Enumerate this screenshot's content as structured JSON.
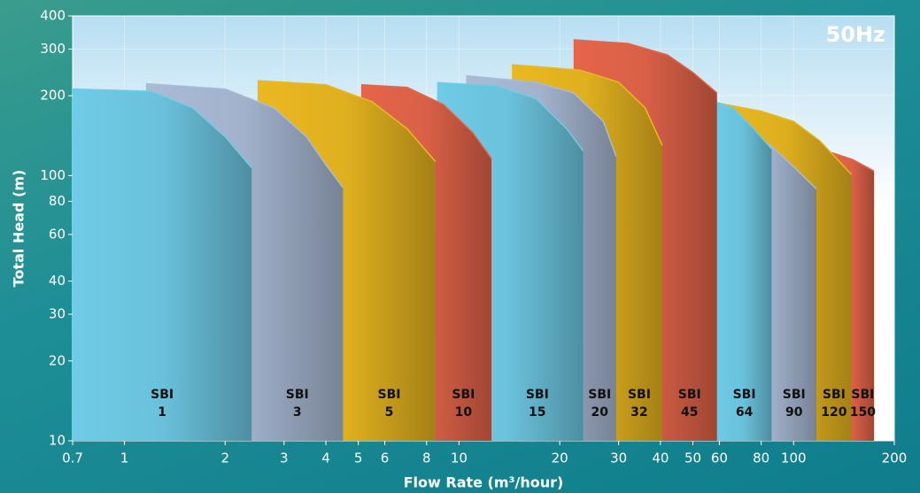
{
  "chart_data": {
    "type": "area-range",
    "annotation": "50Hz",
    "x_label": "Flow Rate (m³/hour)",
    "y_label": "Total Head (m)",
    "xscale": "log",
    "yscale": "log",
    "grid": true,
    "xlim": [
      0.7,
      200
    ],
    "ylim": [
      10,
      400
    ],
    "xticks": [
      0.7,
      1,
      2,
      3,
      4,
      5,
      6,
      8,
      10,
      20,
      30,
      40,
      50,
      60,
      80,
      100,
      200
    ],
    "yticks": [
      10,
      20,
      30,
      40,
      60,
      80,
      100,
      200,
      300,
      400
    ],
    "series": [
      {
        "name": "SBI 1",
        "color": "#6fcbe6",
        "x": [
          0.7,
          1.2,
          1.6,
          2.0,
          2.4
        ],
        "values": [
          212,
          208,
          180,
          140,
          107
        ]
      },
      {
        "name": "SBI 3",
        "color": "#aabbd6",
        "x": [
          1.16,
          2,
          2.8,
          3.5,
          4.0,
          4.5
        ],
        "values": [
          222,
          212,
          180,
          140,
          110,
          90
        ]
      },
      {
        "name": "SBI 5",
        "color": "#eab820",
        "x": [
          2.5,
          4,
          5.5,
          7,
          8.5
        ],
        "values": [
          228,
          220,
          190,
          150,
          113
        ]
      },
      {
        "name": "SBI 10",
        "color": "#e4654a",
        "x": [
          5.1,
          7,
          9,
          11,
          12.5
        ],
        "values": [
          220,
          215,
          185,
          145,
          116
        ]
      },
      {
        "name": "SBI 15",
        "color": "#6fcbe6",
        "x": [
          8.6,
          13,
          17,
          21,
          23.5
        ],
        "values": [
          224,
          218,
          195,
          150,
          124
        ]
      },
      {
        "name": "SBI 20",
        "color": "#aabbd6",
        "x": [
          10.5,
          17,
          22,
          27,
          29.5
        ],
        "values": [
          238,
          225,
          205,
          160,
          118
        ]
      },
      {
        "name": "SBI 32",
        "color": "#eab820",
        "x": [
          14.4,
          23,
          30,
          36,
          40.5
        ],
        "values": [
          262,
          250,
          225,
          180,
          130
        ]
      },
      {
        "name": "SBI 45",
        "color": "#e4654a",
        "x": [
          22,
          32,
          42,
          50,
          59
        ],
        "values": [
          325,
          315,
          285,
          245,
          205
        ]
      },
      {
        "name": "SBI 64",
        "color": "#6fcbe6",
        "x": [
          58,
          66,
          76,
          86
        ],
        "values": [
          190,
          180,
          150,
          126
        ]
      },
      {
        "name": "SBI 90",
        "color": "#aabbd6",
        "x": [
          62,
          86,
          100,
          117
        ],
        "values": [
          170,
          129,
          108,
          89
        ]
      },
      {
        "name": "SBI 120",
        "color": "#eab820",
        "x": [
          59,
          80,
          100,
          120,
          149
        ],
        "values": [
          188,
          175,
          160,
          135,
          101
        ]
      },
      {
        "name": "SBI 150",
        "color": "#e4654a",
        "x": [
          130,
          150,
          174
        ],
        "values": [
          122,
          115,
          104
        ]
      }
    ]
  }
}
